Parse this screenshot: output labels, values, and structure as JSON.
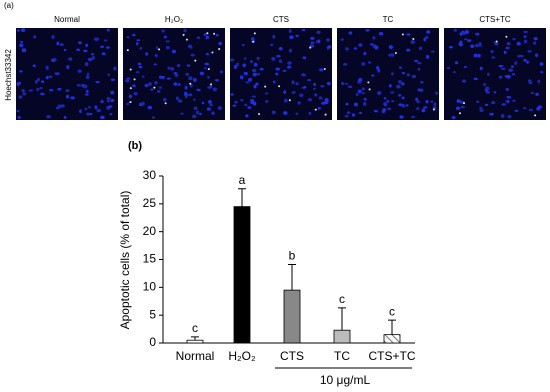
{
  "panel_a": {
    "label": "(a)",
    "stain": "Hoechst33342",
    "images": [
      "Normal",
      "H₂O₂",
      "CTS",
      "TC",
      "CTS+TC"
    ]
  },
  "chart_data": {
    "type": "bar",
    "label": "(b)",
    "y_label": "Apoptotic cells (% of total)",
    "categories": [
      "Normal",
      "H₂O₂",
      "CTS",
      "TC",
      "CTS+TC"
    ],
    "values": [
      0.5,
      24.5,
      9.5,
      2.3,
      1.5
    ],
    "errors": [
      0.6,
      3.2,
      4.6,
      4.0,
      2.6
    ],
    "significance": [
      "c",
      "a",
      "b",
      "c",
      "c"
    ],
    "colors": [
      "#ffffff",
      "#000000",
      "#888888",
      "#bbbbbb",
      "#ffffff"
    ],
    "hatch": [
      false,
      false,
      false,
      false,
      true
    ],
    "group_label": "10 μg/mL",
    "ylim": [
      0,
      30
    ],
    "yticks": [
      0,
      5,
      10,
      15,
      20,
      25,
      30
    ]
  }
}
